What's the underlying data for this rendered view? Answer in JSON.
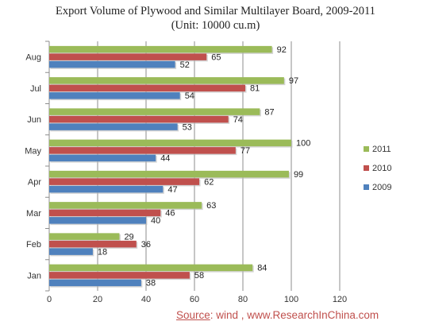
{
  "chart_data": {
    "type": "bar",
    "orientation": "horizontal",
    "title": "Export Volume of Plywood and Similar Multilayer Board, 2009-2011",
    "subtitle": "(Unit: 10000 cu.m)",
    "categories": [
      "Aug",
      "Jul",
      "Jun",
      "May",
      "Apr",
      "Mar",
      "Feb",
      "Jan"
    ],
    "series": [
      {
        "name": "2011",
        "color": "#9bbb59",
        "values": [
          92,
          97,
          87,
          100,
          99,
          63,
          29,
          84
        ]
      },
      {
        "name": "2010",
        "color": "#c0504d",
        "values": [
          65,
          81,
          74,
          77,
          62,
          46,
          36,
          58
        ]
      },
      {
        "name": "2009",
        "color": "#4f81bd",
        "values": [
          52,
          54,
          53,
          44,
          47,
          40,
          18,
          38
        ]
      }
    ],
    "x_ticks": [
      "0",
      "20",
      "40",
      "60",
      "80",
      "100",
      "120"
    ],
    "xlim": [
      0,
      120
    ],
    "grid": true,
    "legend_position": "right",
    "legend_order": [
      "2011",
      "2010",
      "2009"
    ]
  },
  "source": {
    "label": "Source",
    "text": ": wind , www.ResearchInChina.com"
  }
}
